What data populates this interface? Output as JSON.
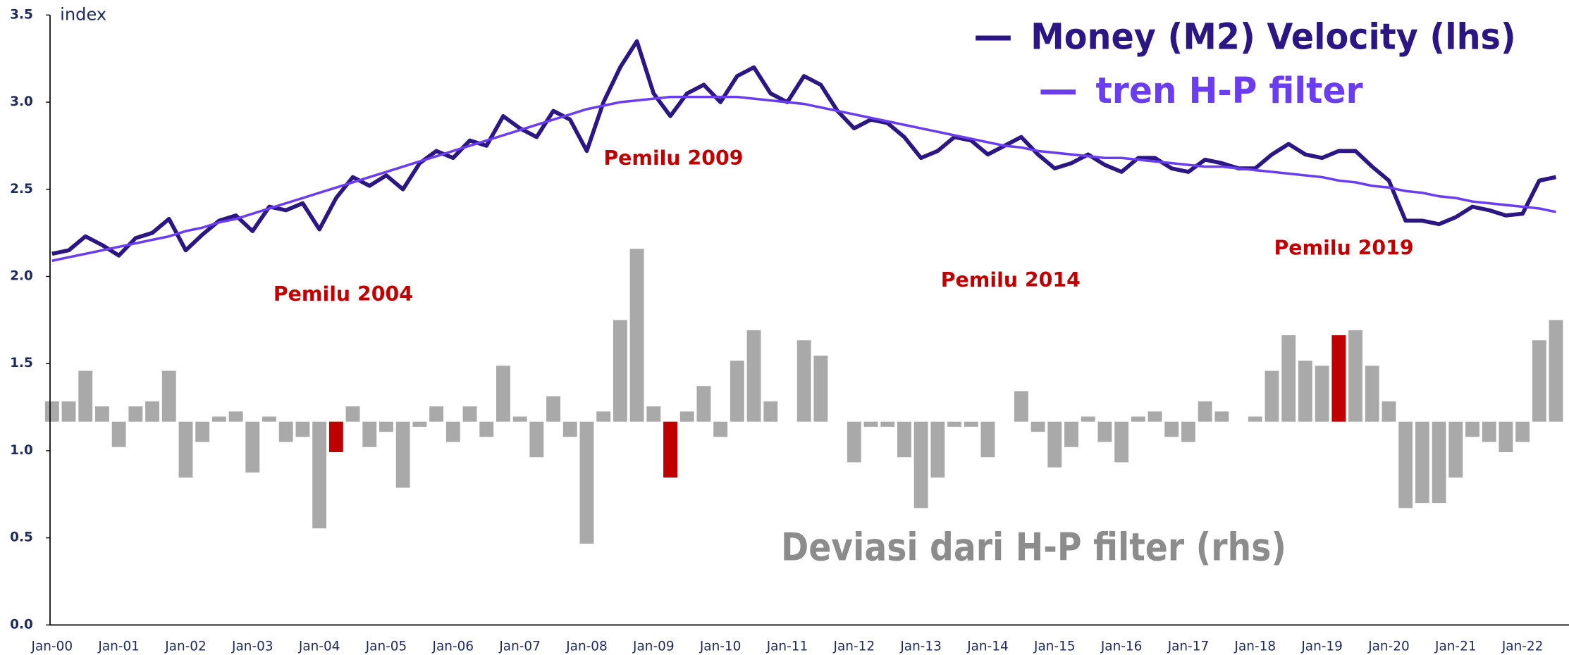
{
  "chart_data": {
    "type": "combo",
    "ylabel": "index",
    "ylim": [
      0,
      3.5
    ],
    "yticks": [
      {
        "value": 0,
        "label": "0.0"
      },
      0.5,
      {
        "value": 1,
        "label": "1.0"
      },
      1.5,
      {
        "value": 2,
        "label": "2.0"
      },
      2.5,
      {
        "value": 3,
        "label": "3.0"
      },
      3.5
    ],
    "y2lim": [
      -0.4,
      0.8
    ],
    "grid": false,
    "legend": "top-right",
    "annotations": [
      "Pemilu 2004",
      "Pemilu 2009",
      "Pemilu 2014",
      "Pemilu 2019"
    ],
    "categories": [
      "Jan-00",
      null,
      null,
      null,
      "Jan-01",
      null,
      null,
      null,
      "Jan-02",
      null,
      null,
      null,
      "Jan-03",
      null,
      null,
      null,
      "Jan-04",
      null,
      null,
      null,
      "Jan-05",
      null,
      null,
      null,
      "Jan-06",
      null,
      null,
      null,
      "Jan-07",
      null,
      null,
      null,
      "Jan-08",
      null,
      null,
      null,
      "Jan-09",
      null,
      null,
      null,
      "Jan-10",
      null,
      null,
      null,
      "Jan-11",
      null,
      null,
      null,
      "Jan-12",
      null,
      null,
      null,
      "Jan-13",
      null,
      null,
      null,
      "Jan-14",
      null,
      null,
      null,
      "Jan-15",
      null,
      null,
      null,
      "Jan-16",
      null,
      null,
      null,
      "Jan-17",
      null,
      null,
      null,
      "Jan-18",
      null,
      null,
      null,
      "Jan-19",
      null,
      null,
      null,
      "Jan-20",
      null,
      null,
      null,
      "Jan-21",
      null,
      null,
      null,
      "Jan-22",
      null,
      null
    ],
    "series": [
      {
        "name": "Money (M2) Velocity (lhs)",
        "type": "line",
        "color": "#2b1684",
        "values": [
          2.13,
          2.15,
          2.23,
          2.18,
          2.12,
          2.22,
          2.25,
          2.33,
          2.15,
          2.24,
          2.32,
          2.35,
          2.26,
          2.4,
          2.38,
          2.42,
          2.27,
          2.45,
          2.57,
          2.52,
          2.58,
          2.5,
          2.65,
          2.72,
          2.68,
          2.78,
          2.75,
          2.92,
          2.85,
          2.8,
          2.95,
          2.9,
          2.72,
          3.0,
          3.2,
          3.35,
          3.05,
          2.92,
          3.05,
          3.1,
          3.0,
          3.15,
          3.2,
          3.05,
          3.0,
          3.15,
          3.1,
          2.95,
          2.85,
          2.9,
          2.88,
          2.8,
          2.68,
          2.72,
          2.8,
          2.78,
          2.7,
          2.75,
          2.8,
          2.7,
          2.62,
          2.65,
          2.7,
          2.64,
          2.6,
          2.68,
          2.68,
          2.62,
          2.6,
          2.67,
          2.65,
          2.62,
          2.62,
          2.7,
          2.76,
          2.7,
          2.68,
          2.72,
          2.72,
          2.63,
          2.55,
          2.32,
          2.32,
          2.3,
          2.34,
          2.4,
          2.38,
          2.35,
          2.36,
          2.55,
          2.57
        ]
      },
      {
        "name": "tren H-P filter",
        "type": "line",
        "color": "#6a3df0",
        "values": [
          2.09,
          2.11,
          2.13,
          2.15,
          2.17,
          2.19,
          2.21,
          2.23,
          2.26,
          2.28,
          2.31,
          2.33,
          2.36,
          2.39,
          2.42,
          2.45,
          2.48,
          2.51,
          2.54,
          2.57,
          2.6,
          2.63,
          2.66,
          2.69,
          2.72,
          2.75,
          2.78,
          2.81,
          2.84,
          2.87,
          2.9,
          2.93,
          2.96,
          2.98,
          3.0,
          3.01,
          3.02,
          3.03,
          3.03,
          3.03,
          3.03,
          3.03,
          3.02,
          3.01,
          3.0,
          2.99,
          2.97,
          2.95,
          2.93,
          2.91,
          2.89,
          2.87,
          2.85,
          2.83,
          2.81,
          2.79,
          2.77,
          2.75,
          2.74,
          2.72,
          2.71,
          2.7,
          2.69,
          2.68,
          2.68,
          2.67,
          2.66,
          2.65,
          2.64,
          2.63,
          2.63,
          2.62,
          2.61,
          2.6,
          2.59,
          2.58,
          2.57,
          2.55,
          2.54,
          2.52,
          2.51,
          2.49,
          2.48,
          2.46,
          2.45,
          2.43,
          2.42,
          2.41,
          2.4,
          2.39,
          2.37
        ]
      },
      {
        "name": "Deviasi dari H-P filter (rhs)",
        "type": "bar",
        "axis": "y2",
        "color": "#a9a9a9",
        "values": [
          0.04,
          0.04,
          0.1,
          0.03,
          -0.05,
          0.03,
          0.04,
          0.1,
          -0.11,
          -0.04,
          0.01,
          0.02,
          -0.1,
          0.01,
          -0.04,
          -0.03,
          -0.21,
          null,
          0.03,
          -0.05,
          -0.02,
          -0.13,
          -0.01,
          0.03,
          -0.04,
          0.03,
          -0.03,
          0.11,
          0.01,
          -0.07,
          0.05,
          -0.03,
          -0.24,
          0.02,
          0.2,
          0.34,
          0.03,
          null,
          0.02,
          0.07,
          -0.03,
          0.12,
          0.18,
          0.04,
          0.0,
          0.16,
          0.13,
          0.0,
          -0.08,
          -0.01,
          -0.01,
          -0.07,
          -0.17,
          -0.11,
          -0.01,
          -0.01,
          -0.07,
          null,
          0.06,
          -0.02,
          -0.09,
          -0.05,
          0.01,
          -0.04,
          -0.08,
          0.01,
          0.02,
          -0.03,
          -0.04,
          0.04,
          0.02,
          0.0,
          0.01,
          0.1,
          0.17,
          0.12,
          0.11,
          null,
          0.18,
          0.11,
          0.04,
          -0.17,
          -0.16,
          -0.16,
          -0.11,
          -0.03,
          -0.04,
          -0.06,
          -0.04,
          0.16,
          0.2
        ]
      },
      {
        "type": "bar",
        "axis": "y2",
        "color": "#c00000",
        "values": [
          null,
          null,
          null,
          null,
          null,
          null,
          null,
          null,
          null,
          null,
          null,
          null,
          null,
          null,
          null,
          null,
          null,
          -0.06,
          null,
          null,
          null,
          null,
          null,
          null,
          null,
          null,
          null,
          null,
          null,
          null,
          null,
          null,
          null,
          null,
          null,
          null,
          null,
          -0.11,
          null,
          null,
          null,
          null,
          null,
          null,
          null,
          null,
          null,
          null,
          null,
          null,
          null,
          null,
          null,
          null,
          null,
          null,
          null,
          0.0,
          null,
          null,
          null,
          null,
          null,
          null,
          null,
          null,
          null,
          null,
          null,
          null,
          null,
          null,
          null,
          null,
          null,
          null,
          null,
          0.17,
          null,
          null,
          null,
          null,
          null,
          null,
          null,
          null,
          null,
          null,
          null,
          null,
          null
        ]
      }
    ]
  }
}
